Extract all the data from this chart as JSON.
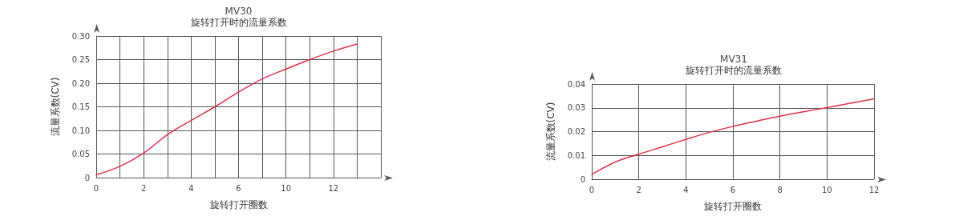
{
  "chart_data": [
    {
      "type": "line",
      "title": "MV30",
      "subtitle": "旋转打开时的流量系数",
      "xlabel": "旋转打开圈数",
      "ylabel": "流量系数(CV)",
      "categories": [
        "0",
        null,
        "2",
        null,
        "4",
        null,
        "6",
        null,
        "10",
        null,
        "12",
        null,
        null
      ],
      "series": [
        {
          "color": "#e0304a",
          "values": [
            0.006,
            0.024,
            0.052,
            0.091,
            0.121,
            0.15,
            0.181,
            0.209,
            0.23,
            0.25,
            0.268,
            0.283,
            null
          ]
        }
      ],
      "ylim": [
        0,
        0.3
      ],
      "yticks": [
        0,
        0.05,
        {
          "value": 0.1,
          "label": "0.10"
        },
        0.15,
        {
          "value": 0.2,
          "label": "0.20"
        },
        0.25,
        {
          "value": 0.3,
          "label": "0.30"
        }
      ],
      "grid": true,
      "marker": "none",
      "line_style": "solid"
    },
    {
      "type": "line",
      "title": "MV31",
      "subtitle": "旋转打开时的流量系数",
      "xlabel": "旋转打开圈数",
      "ylabel": "流量系数(CV)",
      "x": [
        0,
        1,
        2,
        3,
        4,
        5,
        6,
        7,
        8,
        9,
        10,
        11,
        12
      ],
      "series": [
        {
          "color": "#e0304a",
          "values": [
            0.002,
            0.0072,
            0.0105,
            0.0136,
            0.0167,
            0.0197,
            0.0222,
            0.0244,
            0.0265,
            0.0283,
            0.0301,
            0.0319,
            0.0338
          ]
        }
      ],
      "xlim": [
        0,
        12
      ],
      "xticks": [
        0,
        2,
        4,
        6,
        8,
        10,
        12
      ],
      "ylim": [
        0,
        0.04
      ],
      "yticks": [
        0,
        0.01,
        0.02,
        0.03,
        0.04
      ],
      "grid": true,
      "marker": "none",
      "line_style": "solid"
    }
  ]
}
